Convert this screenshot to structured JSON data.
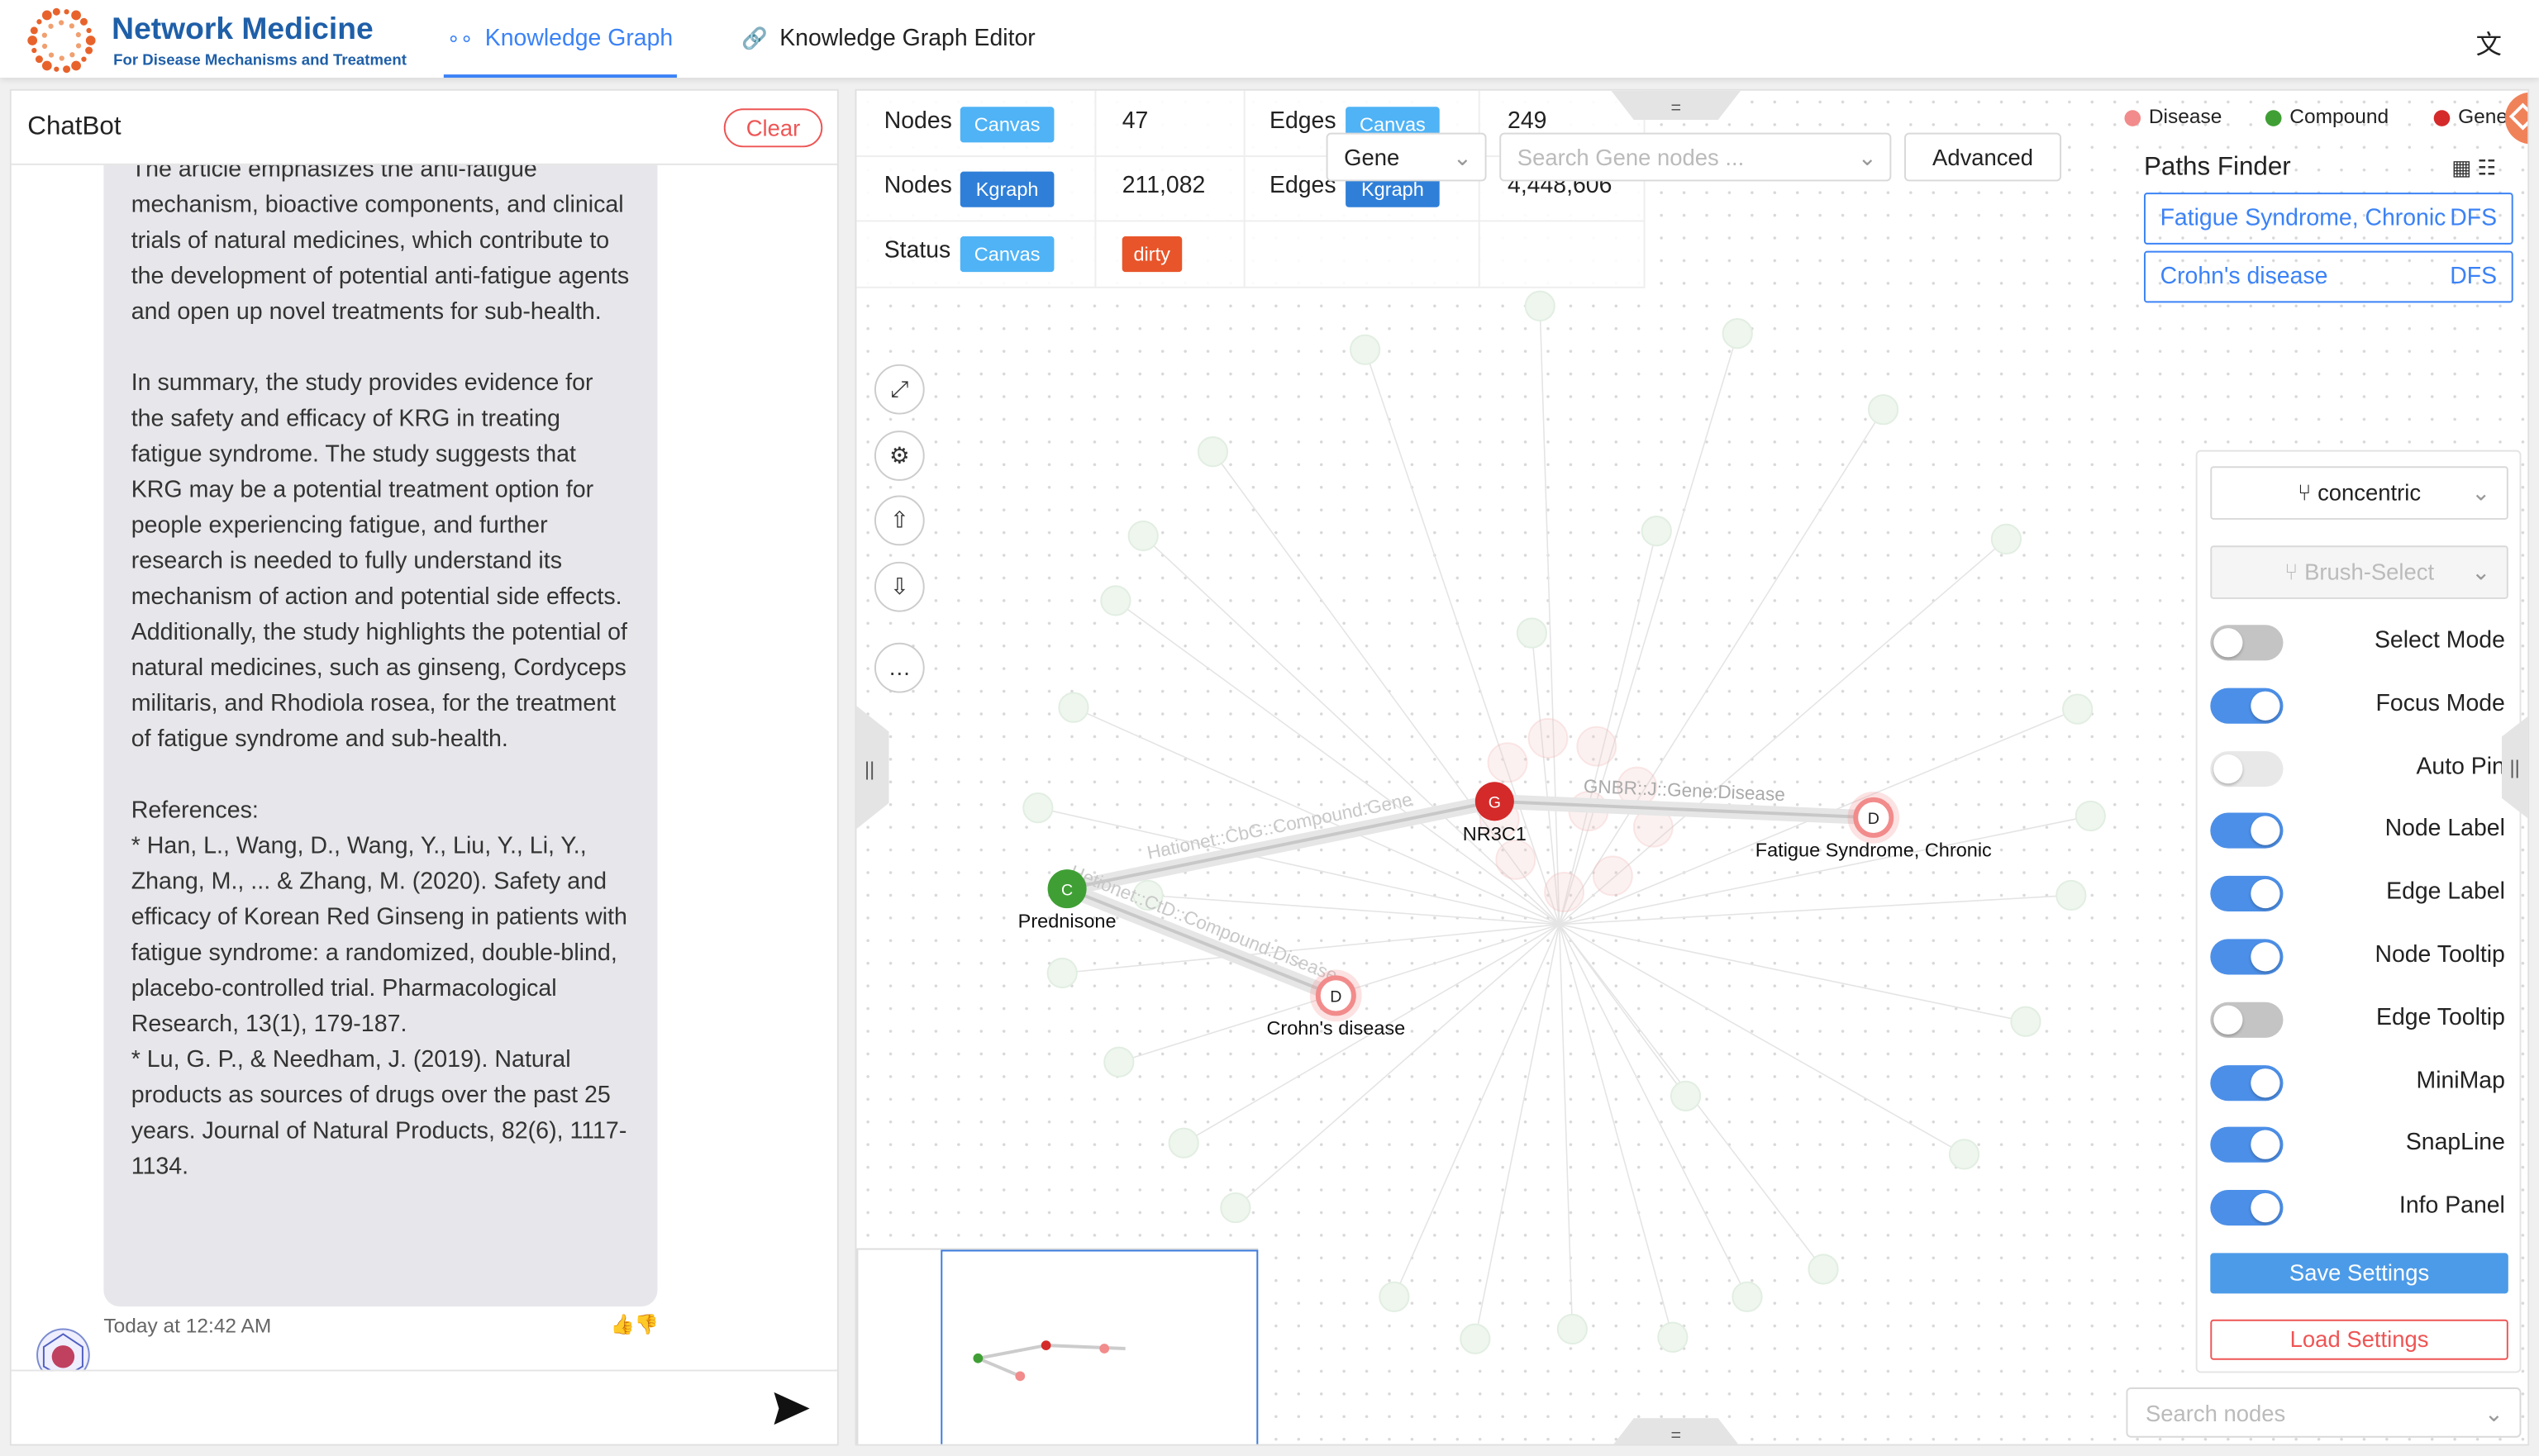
{
  "header": {
    "title": "Network Medicine",
    "subtitle": "For Disease Mechanisms and Treatment",
    "tabs": [
      "Knowledge Graph",
      "Knowledge Graph Editor"
    ]
  },
  "chat": {
    "title": "ChatBot",
    "clear": "Clear",
    "paragraphs": [
      "The article emphasizes the anti-fatigue mechanism, bioactive components, and clinical trials of natural medicines, which contribute to the development of potential anti-fatigue agents and open up novel treatments for sub-health.",
      "In summary, the study provides evidence for the safety and efficacy of KRG in treating fatigue syndrome. The study suggests that KRG may be a potential treatment option for people experiencing fatigue, and further research is needed to fully understand its mechanism of action and potential side effects. Additionally, the study highlights the potential of natural medicines, such as ginseng, Cordyceps militaris, and Rhodiola rosea, for the treatment of fatigue syndrome and sub-health."
    ],
    "references_title": "References:",
    "references": [
      "* Han, L., Wang, D., Wang, Y., Liu, Y., Li, Y., Zhang, M., ... & Zhang, M. (2020). Safety and efficacy of Korean Red Ginseng in patients with fatigue syndrome: a randomized, double-blind, placebo-controlled trial. Pharmacological Research, 13(1), 179-187.",
      "* Lu, G. P., & Needham, J. (2019). Natural products as sources of drugs over the past 25 years. Journal of Natural Products, 82(6), 1117-1134."
    ],
    "timestamp": "Today at 12:42 AM"
  },
  "stats": [
    {
      "label": "Nodes",
      "tag": "Canvas",
      "value": 47
    },
    {
      "label": "Edges",
      "tag": "Canvas",
      "value": 249
    },
    {
      "label": "Nodes",
      "tag": "Kgraph",
      "value": "211,082"
    },
    {
      "label": "Edges",
      "tag": "Kgraph",
      "value": "4,448,606"
    },
    {
      "label": "Status",
      "tag": "Canvas",
      "value": "dirty"
    }
  ],
  "search": {
    "type": "Gene",
    "placeholder": "Search Gene nodes ...",
    "advanced": "Advanced"
  },
  "legend": [
    {
      "name": "Disease",
      "color": "#f28b8b"
    },
    {
      "name": "Compound",
      "color": "#3f9f34"
    },
    {
      "name": "Gene",
      "color": "#d42a2a"
    }
  ],
  "paths_finder": {
    "title": "Paths Finder",
    "items": [
      {
        "label": "Fatigue Syndrome, Chronic",
        "algorithm": "DFS"
      },
      {
        "label": "Crohn's disease",
        "algorithm": "DFS"
      }
    ]
  },
  "graph": {
    "nodes": [
      {
        "letter": "G",
        "label": "NR3C1",
        "kind": "Gene"
      },
      {
        "letter": "C",
        "label": "Prednisone",
        "kind": "Compound"
      },
      {
        "letter": "D",
        "label": "Crohn's disease",
        "kind": "Disease"
      },
      {
        "letter": "D",
        "label": "Fatigue Syndrome, Chronic",
        "kind": "Disease"
      }
    ],
    "edges": [
      {
        "label": "Hationet::CbG::Compound:Gene"
      },
      {
        "label": "GNBR::J::Gene:Disease"
      },
      {
        "label": "Hetionet::CtD::Compound:Disease"
      }
    ]
  },
  "settings": {
    "layout": "concentric",
    "brush": "Brush-Select",
    "toggles": [
      {
        "label": "Select Mode",
        "on": false
      },
      {
        "label": "Focus Mode",
        "on": true
      },
      {
        "label": "Auto Pin",
        "on": false
      },
      {
        "label": "Node Label",
        "on": true
      },
      {
        "label": "Edge Label",
        "on": true
      },
      {
        "label": "Node Tooltip",
        "on": true
      },
      {
        "label": "Edge Tooltip",
        "on": false
      },
      {
        "label": "MiniMap",
        "on": true
      },
      {
        "label": "SnapLine",
        "on": true
      },
      {
        "label": "Info Panel",
        "on": true
      }
    ],
    "save": "Save Settings",
    "load": "Load Settings"
  },
  "search_nodes": "Search nodes"
}
